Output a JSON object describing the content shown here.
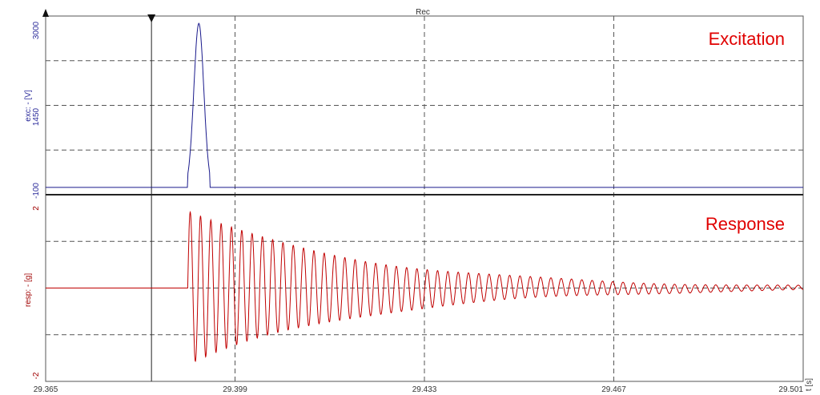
{
  "chart_data": {
    "type": "line",
    "title": "Rec",
    "xlabel": "t [s]",
    "x_ticks": [
      "29.365",
      "29.399",
      "29.433",
      "29.467",
      "29.501"
    ],
    "xlim": [
      29.365,
      29.501
    ],
    "grid": true,
    "cursor_x": 29.384,
    "panels": [
      {
        "name": "excitation",
        "overlay_label": "Excitation",
        "ylabel": "exc: - [V]",
        "y_ticks": [
          "3000",
          "1450",
          "-100"
        ],
        "ylim": [
          -100,
          3000
        ],
        "color": "#1a1a8c",
        "series": [
          {
            "type": "pulse",
            "baseline": 0,
            "start": 29.3905,
            "peak_x": 29.3925,
            "peak": 2900,
            "end": 29.3945
          }
        ]
      },
      {
        "name": "response",
        "overlay_label": "Response",
        "ylabel": "resp: - [g]",
        "y_ticks": [
          "2",
          "-2"
        ],
        "ylim": [
          -2,
          2
        ],
        "color": "#c00000",
        "series": [
          {
            "type": "decaying-oscillation",
            "start": 29.3905,
            "amplitude": 1.65,
            "tau": 0.031,
            "period": 0.00185
          }
        ]
      }
    ]
  }
}
